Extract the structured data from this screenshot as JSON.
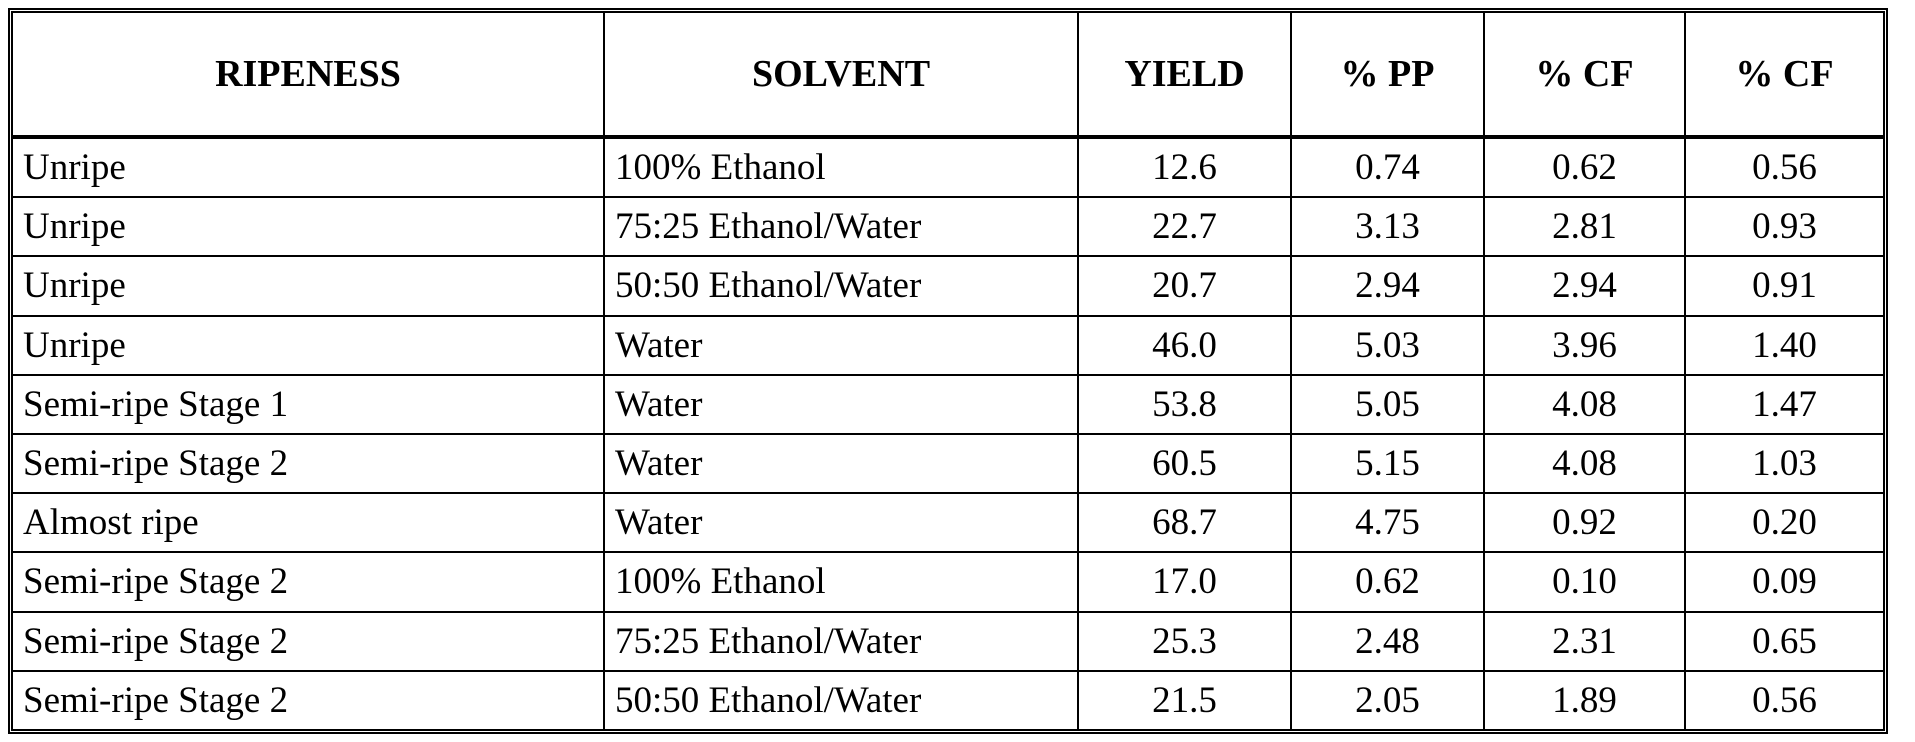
{
  "table": {
    "headers": [
      "RIPENESS",
      "SOLVENT",
      "YIELD",
      "% PP",
      "% CF",
      "% CF"
    ],
    "rows": [
      [
        "Unripe",
        "100% Ethanol",
        "12.6",
        "0.74",
        "0.62",
        "0.56"
      ],
      [
        "Unripe",
        "75:25 Ethanol/Water",
        "22.7",
        "3.13",
        "2.81",
        "0.93"
      ],
      [
        "Unripe",
        "50:50 Ethanol/Water",
        "20.7",
        "2.94",
        "2.94",
        "0.91"
      ],
      [
        "Unripe",
        "Water",
        "46.0",
        "5.03",
        "3.96",
        "1.40"
      ],
      [
        "Semi-ripe Stage 1",
        "Water",
        "53.8",
        "5.05",
        "4.08",
        "1.47"
      ],
      [
        "Semi-ripe Stage 2",
        "Water",
        "60.5",
        "5.15",
        "4.08",
        "1.03"
      ],
      [
        "Almost ripe",
        "Water",
        "68.7",
        "4.75",
        "0.92",
        "0.20"
      ],
      [
        "Semi-ripe Stage 2",
        "100% Ethanol",
        "17.0",
        "0.62",
        "0.10",
        "0.09"
      ],
      [
        "Semi-ripe Stage 2",
        "75:25 Ethanol/Water",
        "25.3",
        "2.48",
        "2.31",
        "0.65"
      ],
      [
        "Semi-ripe Stage 2",
        "50:50 Ethanol/Water",
        "21.5",
        "2.05",
        "1.89",
        "0.56"
      ]
    ]
  }
}
